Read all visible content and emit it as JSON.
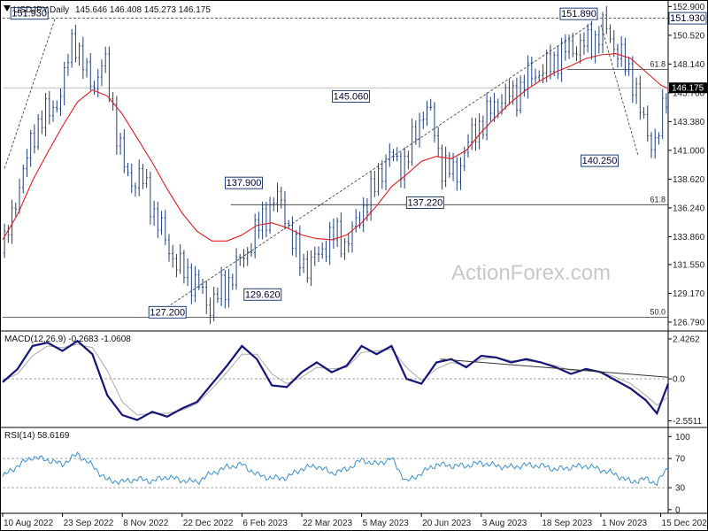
{
  "header": {
    "title": "USDJPY,Daily",
    "ohlc": "145.646 146.408 145.273 146.175"
  },
  "watermark": "ActionForex.com",
  "colors": {
    "candle": "#1f3f7a",
    "ma": "#e41a1c",
    "macd": "#14147a",
    "signal": "#aaaaaa",
    "rsi": "#3a8fd0",
    "grid": "#bbbbbb",
    "current_bg": "#000000",
    "label_border": "#1f3f7a",
    "label_bg": "#ffffff",
    "label_text": "#000033"
  },
  "chart_data": [
    {
      "type": "candlestick",
      "panel": "price",
      "title": "USDJPY,Daily",
      "ylim": [
        126.2,
        153.0
      ],
      "y_ticks": [
        "152.900",
        "150.520",
        "148.140",
        "145.760",
        "143.380",
        "141.000",
        "138.620",
        "136.240",
        "133.860",
        "131.550",
        "129.170",
        "126.790"
      ],
      "x_ticks": [
        "10 Aug 2022",
        "23 Sep 2022",
        "8 Nov 2022",
        "22 Dec 2022",
        "6 Feb 2023",
        "22 Mar 2023",
        "5 May 2023",
        "20 Jun 2023",
        "3 Aug 2023",
        "18 Sep 2023",
        "1 Nov 2023",
        "15 Dec 2023"
      ],
      "current_price": "146.175",
      "series": [
        {
          "name": "",
          "note": "daily closes; x = trading-day index from 10 Aug 2022 (tick every 32 days)",
          "x": [
            0,
            4,
            8,
            12,
            16,
            20,
            24,
            28,
            32,
            36,
            38,
            42,
            46,
            50,
            54,
            58,
            62,
            66,
            70,
            74,
            78,
            82,
            86,
            90,
            94,
            98,
            102,
            106,
            110,
            114,
            118,
            122,
            126,
            130,
            134,
            138,
            142,
            146,
            150,
            154,
            158,
            162,
            166,
            170,
            174,
            178,
            182,
            186,
            190,
            194,
            198,
            202,
            206,
            210,
            214,
            218,
            222,
            226,
            230,
            234,
            238,
            242,
            246,
            250,
            254,
            258,
            262,
            266,
            270,
            274,
            278,
            282,
            286,
            290,
            294,
            298,
            302,
            306,
            310,
            314,
            318,
            322,
            326,
            330,
            334,
            338,
            342,
            346,
            350,
            354,
            356
          ],
          "values": [
            132.5,
            134.8,
            137.8,
            139.5,
            142.3,
            143.5,
            144.0,
            144.8,
            145.9,
            149.5,
            150.8,
            148.2,
            147.0,
            146.5,
            148.5,
            145.5,
            141.5,
            139.0,
            138.5,
            138.7,
            137.5,
            135.2,
            134.0,
            132.6,
            131.2,
            131.0,
            130.2,
            129.4,
            128.1,
            128.8,
            129.5,
            130.5,
            131.5,
            132.5,
            133.8,
            135.0,
            136.0,
            137.0,
            136.5,
            134.0,
            132.1,
            131.5,
            131.8,
            132.4,
            133.8,
            134.0,
            133.3,
            133.9,
            135.0,
            136.8,
            137.5,
            139.2,
            140.7,
            140.0,
            139.8,
            141.0,
            143.0,
            144.8,
            143.3,
            140.0,
            139.5,
            138.8,
            140.5,
            141.8,
            143.0,
            143.5,
            144.5,
            145.2,
            145.5,
            145.6,
            146.3,
            147.2,
            147.5,
            147.6,
            148.3,
            148.9,
            149.3,
            149.6,
            149.7,
            149.8,
            150.4,
            151.3,
            150.0,
            149.0,
            147.5,
            146.9,
            143.5,
            141.8,
            142.0,
            144.5,
            146.2
          ]
        },
        {
          "name": "",
          "note": "red moving average line",
          "x": [
            0,
            8,
            16,
            24,
            32,
            40,
            48,
            56,
            64,
            72,
            80,
            88,
            96,
            104,
            112,
            120,
            128,
            136,
            144,
            152,
            160,
            168,
            176,
            184,
            192,
            200,
            208,
            216,
            224,
            232,
            240,
            248,
            256,
            264,
            272,
            280,
            288,
            296,
            304,
            312,
            320,
            328,
            336,
            344,
            352,
            356
          ],
          "values": [
            133.6,
            135.7,
            138.5,
            140.8,
            143.0,
            145.0,
            146.0,
            145.5,
            144.0,
            142.0,
            140.0,
            137.8,
            135.8,
            134.3,
            133.5,
            133.5,
            134.0,
            134.8,
            135.0,
            134.6,
            134.0,
            133.7,
            133.6,
            134.0,
            135.0,
            136.4,
            138.0,
            139.0,
            140.1,
            140.5,
            140.3,
            141.0,
            142.5,
            143.8,
            145.0,
            146.0,
            146.8,
            147.5,
            148.0,
            148.6,
            148.9,
            149.0,
            148.6,
            147.5,
            146.4,
            146.1
          ]
        }
      ],
      "levels": [
        {
          "label": "61.8",
          "value": 147.7
        },
        {
          "label": "61.8",
          "value": 136.5
        },
        {
          "label": "50.0",
          "value": 127.2
        }
      ],
      "ref_line": 151.93,
      "annotations": [
        {
          "text": "151.930",
          "x": 28,
          "y": 151.93
        },
        {
          "text": "151.890",
          "x": 320,
          "y": 151.89
        },
        {
          "text": "137.900",
          "x": 120,
          "y": 137.9
        },
        {
          "text": "145.060",
          "x": 200,
          "y": 145.06
        },
        {
          "text": "137.220",
          "x": 217,
          "y": 137.22
        },
        {
          "text": "129.620",
          "x": 131,
          "y": 129.62
        },
        {
          "text": "127.200",
          "x": 82,
          "y": 127.2
        },
        {
          "text": "140.250",
          "x": 334,
          "y": 140.25
        },
        {
          "text": "151.930",
          "x": 356,
          "y": 151.93
        }
      ]
    },
    {
      "type": "line",
      "panel": "macd",
      "title": "MACD(12,26,9) -0.2683 -1.0608",
      "ylim": [
        -2.9,
        2.8
      ],
      "y_ticks": [
        "2.4262",
        "0.0",
        "-2.5511"
      ],
      "series": [
        {
          "name": "MACD",
          "x": [
            0,
            8,
            16,
            24,
            32,
            40,
            48,
            56,
            64,
            72,
            80,
            88,
            96,
            104,
            112,
            120,
            128,
            136,
            144,
            152,
            160,
            168,
            176,
            184,
            192,
            200,
            208,
            216,
            224,
            232,
            240,
            248,
            256,
            264,
            272,
            280,
            288,
            296,
            304,
            312,
            320,
            328,
            336,
            344,
            350,
            356
          ],
          "values": [
            -0.2,
            0.6,
            2.0,
            2.2,
            1.7,
            2.3,
            1.5,
            -1.0,
            -2.2,
            -2.5,
            -2.0,
            -2.3,
            -1.8,
            -1.4,
            -0.3,
            0.8,
            2.0,
            1.2,
            -0.4,
            -0.5,
            0.4,
            1.0,
            0.4,
            0.8,
            2.0,
            1.5,
            2.0,
            0.0,
            -0.3,
            1.0,
            1.2,
            0.7,
            1.4,
            1.3,
            1.0,
            1.2,
            1.0,
            0.7,
            0.3,
            0.6,
            0.4,
            -0.1,
            -0.6,
            -1.3,
            -2.1,
            -0.3
          ]
        },
        {
          "name": "Signal",
          "x": [
            0,
            8,
            16,
            24,
            32,
            40,
            48,
            56,
            64,
            72,
            80,
            88,
            96,
            104,
            112,
            120,
            128,
            136,
            144,
            152,
            160,
            168,
            176,
            184,
            192,
            200,
            208,
            216,
            224,
            232,
            240,
            248,
            256,
            264,
            272,
            280,
            288,
            296,
            304,
            312,
            320,
            328,
            336,
            344,
            350,
            356
          ],
          "values": [
            -0.1,
            0.3,
            1.4,
            2.0,
            1.9,
            2.1,
            1.9,
            0.5,
            -1.4,
            -2.2,
            -2.1,
            -2.1,
            -1.9,
            -1.5,
            -0.6,
            0.4,
            1.5,
            1.5,
            0.3,
            -0.3,
            0.1,
            0.7,
            0.6,
            0.7,
            1.6,
            1.7,
            1.8,
            0.7,
            -0.1,
            0.6,
            1.0,
            0.8,
            1.2,
            1.3,
            1.1,
            1.1,
            1.0,
            0.8,
            0.5,
            0.5,
            0.4,
            0.1,
            -0.3,
            -1.0,
            -1.6,
            -1.1
          ]
        }
      ],
      "trendline": {
        "x": [
          234,
          356
        ],
        "y": [
          1.2,
          0.1
        ]
      }
    },
    {
      "type": "line",
      "panel": "rsi",
      "title": "RSI(14) 58.6169",
      "ylim": [
        -5,
        110
      ],
      "y_ticks": [
        "100",
        "70",
        "30",
        "0"
      ],
      "series": [
        {
          "name": "RSI",
          "x": [
            0,
            8,
            16,
            24,
            32,
            40,
            48,
            56,
            64,
            72,
            80,
            88,
            96,
            104,
            112,
            120,
            128,
            136,
            144,
            152,
            160,
            168,
            176,
            184,
            192,
            200,
            208,
            216,
            224,
            232,
            240,
            248,
            256,
            264,
            272,
            280,
            288,
            296,
            304,
            312,
            320,
            328,
            336,
            344,
            350,
            356
          ],
          "values": [
            45,
            60,
            72,
            68,
            62,
            76,
            60,
            40,
            38,
            42,
            39,
            45,
            40,
            38,
            50,
            58,
            62,
            48,
            43,
            44,
            56,
            60,
            50,
            55,
            68,
            62,
            70,
            38,
            50,
            62,
            60,
            60,
            64,
            60,
            58,
            61,
            60,
            55,
            58,
            60,
            55,
            48,
            38,
            42,
            36,
            58
          ]
        }
      ]
    }
  ]
}
